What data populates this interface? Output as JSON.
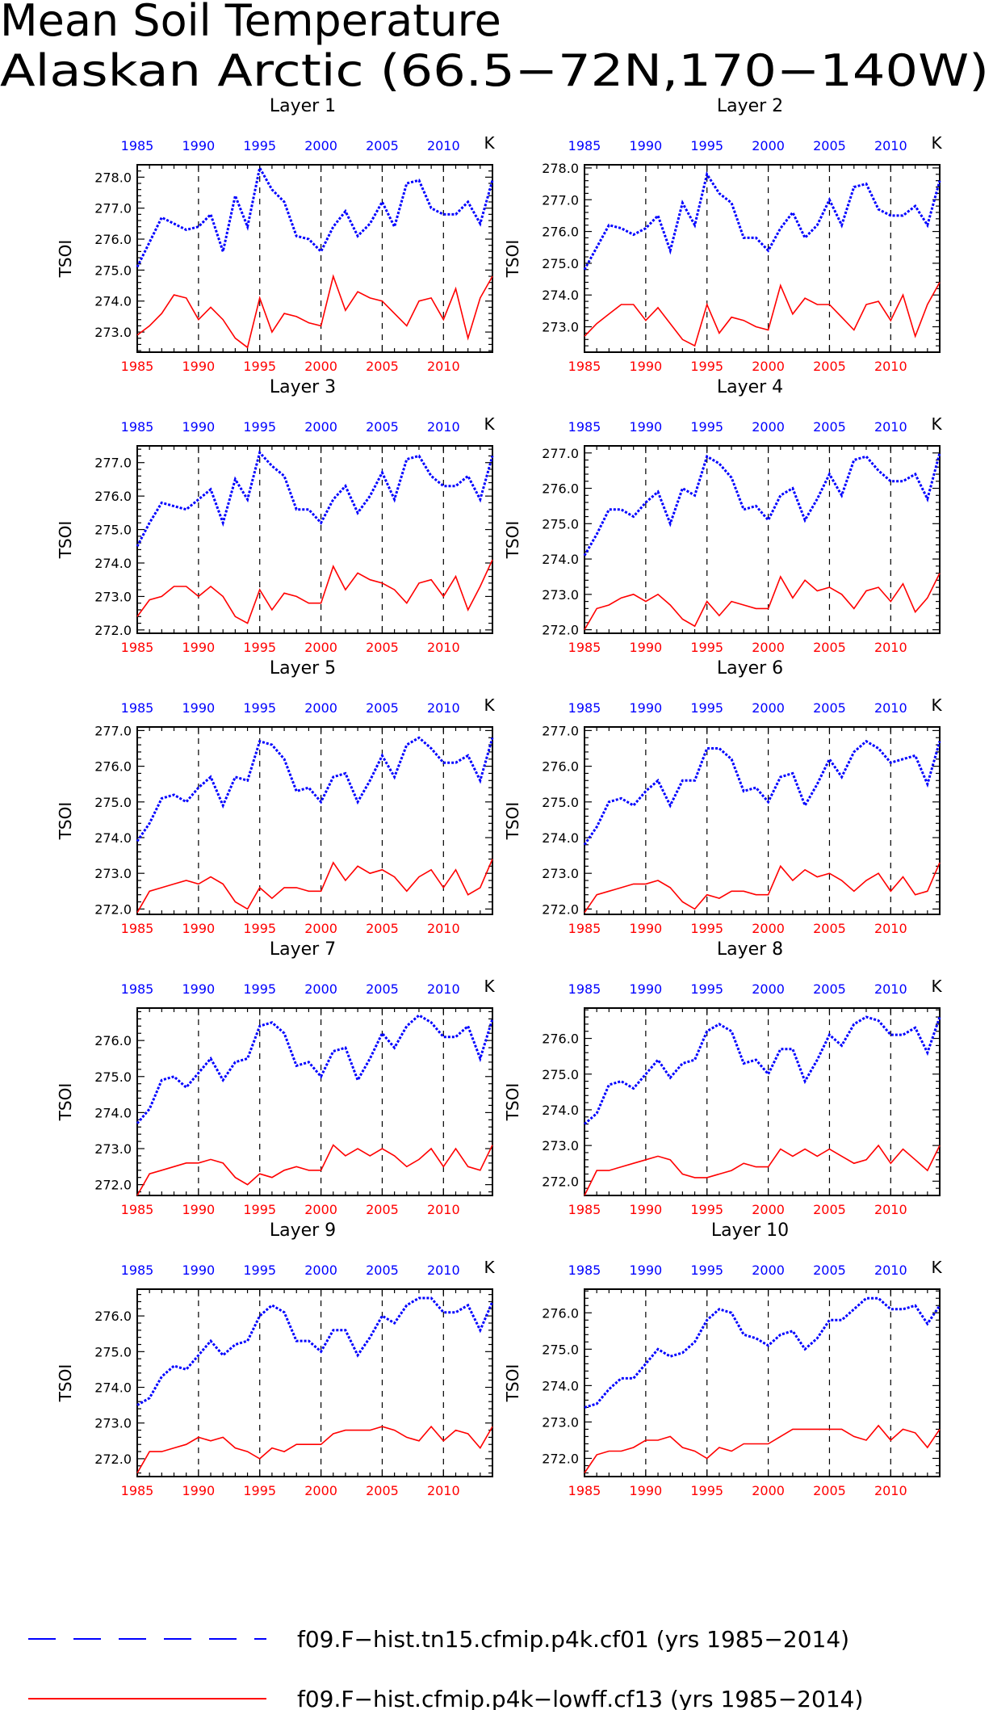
{
  "figure": {
    "title_line1": "Mean Soil Temperature",
    "title_line2": "Alaskan Arctic (66.5−72N,170−140W)"
  },
  "legend": {
    "entries": [
      {
        "label": "f09.F−hist.tn15.cfmip.p4k.cf01 (yrs 1985−2014)",
        "color": "#0000ff",
        "style": "dashed"
      },
      {
        "label": "f09.F−hist.cfmip.p4k−lowff.cf13 (yrs 1985−2014)",
        "color": "#ff0000",
        "style": "solid"
      }
    ]
  },
  "chart_data": [
    {
      "type": "line",
      "title": "Layer 1",
      "ylabel": "TSOI",
      "unit": "K",
      "x_range": [
        1985,
        2014
      ],
      "ylim": [
        272.35,
        278.4
      ],
      "yticks": [
        273.0,
        274.0,
        275.0,
        276.0,
        277.0,
        278.0
      ],
      "xticks": [
        1985,
        1990,
        1995,
        2000,
        2005,
        2010
      ],
      "series": [
        {
          "name": "f09.F−hist.tn15.cfmip.p4k.cf01 (yrs 1985−2014)",
          "color": "#0000ff",
          "values": [
            275.1,
            275.9,
            276.7,
            276.5,
            276.3,
            276.4,
            276.8,
            275.6,
            277.4,
            276.4,
            278.3,
            277.6,
            277.2,
            276.1,
            276.0,
            275.6,
            276.4,
            276.9,
            276.1,
            276.5,
            277.2,
            276.4,
            277.8,
            277.9,
            277.0,
            276.8,
            276.8,
            277.2,
            276.5,
            277.9
          ]
        },
        {
          "name": "f09.F−hist.cfmip.p4k−lowff.cf13 (yrs 1985−2014)",
          "color": "#ff0000",
          "values": [
            272.9,
            273.2,
            273.6,
            274.2,
            274.1,
            273.4,
            273.8,
            273.4,
            272.8,
            272.5,
            274.1,
            273.0,
            273.6,
            273.5,
            273.3,
            273.2,
            274.8,
            273.7,
            274.3,
            274.1,
            274.0,
            273.6,
            273.2,
            274.0,
            274.1,
            273.4,
            274.4,
            272.8,
            274.1,
            274.8
          ]
        }
      ]
    },
    {
      "type": "line",
      "title": "Layer 2",
      "ylabel": "TSOI",
      "unit": "K",
      "x_range": [
        1985,
        2014
      ],
      "ylim": [
        272.2,
        278.1
      ],
      "yticks": [
        273.0,
        274.0,
        275.0,
        276.0,
        277.0,
        278.0
      ],
      "xticks": [
        1985,
        1990,
        1995,
        2000,
        2005,
        2010
      ],
      "series": [
        {
          "name": "f09.F−hist.tn15.cfmip.p4k.cf01 (yrs 1985−2014)",
          "color": "#0000ff",
          "values": [
            274.8,
            275.5,
            276.2,
            276.1,
            275.9,
            276.1,
            276.5,
            275.4,
            276.9,
            276.2,
            277.8,
            277.2,
            276.9,
            275.8,
            275.8,
            275.4,
            276.1,
            276.6,
            275.8,
            276.2,
            277.0,
            276.2,
            277.4,
            277.5,
            276.7,
            276.5,
            276.5,
            276.8,
            276.2,
            277.6
          ]
        },
        {
          "name": "f09.F−hist.cfmip.p4k−lowff.cf13 (yrs 1985−2014)",
          "color": "#ff0000",
          "values": [
            272.7,
            273.1,
            273.4,
            273.7,
            273.7,
            273.2,
            273.6,
            273.1,
            272.6,
            272.4,
            273.7,
            272.8,
            273.3,
            273.2,
            273.0,
            272.9,
            274.3,
            273.4,
            273.9,
            273.7,
            273.7,
            273.3,
            272.9,
            273.7,
            273.8,
            273.2,
            274.0,
            272.7,
            273.7,
            274.4
          ]
        }
      ]
    },
    {
      "type": "line",
      "title": "Layer 3",
      "ylabel": "TSOI",
      "unit": "K",
      "x_range": [
        1985,
        2014
      ],
      "ylim": [
        271.9,
        277.5
      ],
      "yticks": [
        272.0,
        273.0,
        274.0,
        275.0,
        276.0,
        277.0
      ],
      "xticks": [
        1985,
        1990,
        1995,
        2000,
        2005,
        2010
      ],
      "series": [
        {
          "name": "f09.F−hist.tn15.cfmip.p4k.cf01 (yrs 1985−2014)",
          "color": "#0000ff",
          "values": [
            274.5,
            275.2,
            275.8,
            275.7,
            275.6,
            275.9,
            276.2,
            275.2,
            276.5,
            275.9,
            277.3,
            276.9,
            276.6,
            275.6,
            275.6,
            275.2,
            275.9,
            276.3,
            275.5,
            276.0,
            276.7,
            275.9,
            277.1,
            277.2,
            276.6,
            276.3,
            276.3,
            276.6,
            275.9,
            277.2
          ]
        },
        {
          "name": "f09.F−hist.cfmip.p4k−lowff.cf13 (yrs 1985−2014)",
          "color": "#ff0000",
          "values": [
            272.4,
            272.9,
            273.0,
            273.3,
            273.3,
            273.0,
            273.3,
            273.0,
            272.4,
            272.2,
            273.2,
            272.6,
            273.1,
            273.0,
            272.8,
            272.8,
            273.9,
            273.2,
            273.7,
            273.5,
            273.4,
            273.2,
            272.8,
            273.4,
            273.5,
            273.0,
            273.6,
            272.6,
            273.3,
            274.1
          ]
        }
      ]
    },
    {
      "type": "line",
      "title": "Layer 4",
      "ylabel": "TSOI",
      "unit": "K",
      "x_range": [
        1985,
        2014
      ],
      "ylim": [
        271.9,
        277.2
      ],
      "yticks": [
        272.0,
        273.0,
        274.0,
        275.0,
        276.0,
        277.0
      ],
      "xticks": [
        1985,
        1990,
        1995,
        2000,
        2005,
        2010
      ],
      "series": [
        {
          "name": "f09.F−hist.tn15.cfmip.p4k.cf01 (yrs 1985−2014)",
          "color": "#0000ff",
          "values": [
            274.1,
            274.7,
            275.4,
            275.4,
            275.2,
            275.6,
            275.9,
            275.0,
            276.0,
            275.8,
            276.9,
            276.7,
            276.3,
            275.4,
            275.5,
            275.1,
            275.8,
            276.0,
            275.1,
            275.7,
            276.4,
            275.8,
            276.8,
            276.9,
            276.5,
            276.2,
            276.2,
            276.4,
            275.7,
            277.0
          ]
        },
        {
          "name": "f09.F−hist.cfmip.p4k−lowff.cf13 (yrs 1985−2014)",
          "color": "#ff0000",
          "values": [
            272.0,
            272.6,
            272.7,
            272.9,
            273.0,
            272.8,
            273.0,
            272.7,
            272.3,
            272.1,
            272.8,
            272.4,
            272.8,
            272.7,
            272.6,
            272.6,
            273.5,
            272.9,
            273.4,
            273.1,
            273.2,
            273.0,
            272.6,
            273.1,
            273.2,
            272.8,
            273.3,
            272.5,
            272.9,
            273.6
          ]
        }
      ]
    },
    {
      "type": "line",
      "title": "Layer 5",
      "ylabel": "TSOI",
      "unit": "K",
      "x_range": [
        1985,
        2014
      ],
      "ylim": [
        271.85,
        277.1
      ],
      "yticks": [
        272.0,
        273.0,
        274.0,
        275.0,
        276.0,
        277.0
      ],
      "xticks": [
        1985,
        1990,
        1995,
        2000,
        2005,
        2010
      ],
      "series": [
        {
          "name": "f09.F−hist.tn15.cfmip.p4k.cf01 (yrs 1985−2014)",
          "color": "#0000ff",
          "values": [
            273.9,
            274.4,
            275.1,
            275.2,
            275.0,
            275.4,
            275.7,
            274.9,
            275.7,
            275.6,
            276.7,
            276.6,
            276.2,
            275.3,
            275.4,
            275.0,
            275.7,
            275.8,
            275.0,
            275.6,
            276.3,
            275.7,
            276.6,
            276.8,
            276.5,
            276.1,
            276.1,
            276.3,
            275.6,
            276.8
          ]
        },
        {
          "name": "f09.F−hist.cfmip.p4k−lowff.cf13 (yrs 1985−2014)",
          "color": "#ff0000",
          "values": [
            271.9,
            272.5,
            272.6,
            272.7,
            272.8,
            272.7,
            272.9,
            272.7,
            272.2,
            272.0,
            272.6,
            272.3,
            272.6,
            272.6,
            272.5,
            272.5,
            273.3,
            272.8,
            273.2,
            273.0,
            273.1,
            272.9,
            272.5,
            272.9,
            273.1,
            272.6,
            273.1,
            272.4,
            272.6,
            273.4
          ]
        }
      ]
    },
    {
      "type": "line",
      "title": "Layer 6",
      "ylabel": "TSOI",
      "unit": "K",
      "x_range": [
        1985,
        2014
      ],
      "ylim": [
        271.85,
        277.1
      ],
      "yticks": [
        272.0,
        273.0,
        274.0,
        275.0,
        276.0,
        277.0
      ],
      "xticks": [
        1985,
        1990,
        1995,
        2000,
        2005,
        2010
      ],
      "series": [
        {
          "name": "f09.F−hist.tn15.cfmip.p4k.cf01 (yrs 1985−2014)",
          "color": "#0000ff",
          "values": [
            273.8,
            274.3,
            275.0,
            275.1,
            274.9,
            275.3,
            275.6,
            274.9,
            275.6,
            275.6,
            276.5,
            276.5,
            276.2,
            275.3,
            275.4,
            275.0,
            275.7,
            275.8,
            274.9,
            275.5,
            276.2,
            275.7,
            276.4,
            276.7,
            276.5,
            276.1,
            276.2,
            276.3,
            275.5,
            276.7
          ]
        },
        {
          "name": "f09.F−hist.cfmip.p4k−lowff.cf13 (yrs 1985−2014)",
          "color": "#ff0000",
          "values": [
            271.9,
            272.4,
            272.5,
            272.6,
            272.7,
            272.7,
            272.8,
            272.6,
            272.2,
            272.0,
            272.4,
            272.3,
            272.5,
            272.5,
            272.4,
            272.4,
            273.2,
            272.8,
            273.1,
            272.9,
            273.0,
            272.8,
            272.5,
            272.8,
            273.0,
            272.5,
            272.9,
            272.4,
            272.5,
            273.3
          ]
        }
      ]
    },
    {
      "type": "line",
      "title": "Layer 7",
      "ylabel": "TSOI",
      "unit": "K",
      "x_range": [
        1985,
        2014
      ],
      "ylim": [
        271.7,
        276.9
      ],
      "yticks": [
        272.0,
        273.0,
        274.0,
        275.0,
        276.0
      ],
      "xticks": [
        1985,
        1990,
        1995,
        2000,
        2005,
        2010
      ],
      "series": [
        {
          "name": "f09.F−hist.tn15.cfmip.p4k.cf01 (yrs 1985−2014)",
          "color": "#0000ff",
          "values": [
            273.7,
            274.1,
            274.9,
            275.0,
            274.7,
            275.1,
            275.5,
            274.9,
            275.4,
            275.5,
            276.4,
            276.5,
            276.2,
            275.3,
            275.4,
            275.0,
            275.7,
            275.8,
            274.9,
            275.5,
            276.2,
            275.8,
            276.4,
            276.7,
            276.5,
            276.1,
            276.1,
            276.4,
            275.5,
            276.6
          ]
        },
        {
          "name": "f09.F−hist.cfmip.p4k−lowff.cf13 (yrs 1985−2014)",
          "color": "#ff0000",
          "values": [
            271.7,
            272.3,
            272.4,
            272.5,
            272.6,
            272.6,
            272.7,
            272.6,
            272.2,
            272.0,
            272.3,
            272.2,
            272.4,
            272.5,
            272.4,
            272.4,
            273.1,
            272.8,
            273.0,
            272.8,
            273.0,
            272.8,
            272.5,
            272.7,
            273.0,
            272.5,
            273.0,
            272.5,
            272.4,
            273.1
          ]
        }
      ]
    },
    {
      "type": "line",
      "title": "Layer 8",
      "ylabel": "TSOI",
      "unit": "K",
      "x_range": [
        1985,
        2014
      ],
      "ylim": [
        271.6,
        276.85
      ],
      "yticks": [
        272.0,
        273.0,
        274.0,
        275.0,
        276.0
      ],
      "xticks": [
        1985,
        1990,
        1995,
        2000,
        2005,
        2010
      ],
      "series": [
        {
          "name": "f09.F−hist.tn15.cfmip.p4k.cf01 (yrs 1985−2014)",
          "color": "#0000ff",
          "values": [
            273.6,
            273.9,
            274.7,
            274.8,
            274.6,
            275.0,
            275.4,
            274.9,
            275.3,
            275.4,
            276.2,
            276.4,
            276.2,
            275.3,
            275.4,
            275.0,
            275.7,
            275.7,
            274.8,
            275.4,
            276.1,
            275.8,
            276.4,
            276.6,
            276.5,
            276.1,
            276.1,
            276.3,
            275.6,
            276.6
          ]
        },
        {
          "name": "f09.F−hist.cfmip.p4k−lowff.cf13 (yrs 1985−2014)",
          "color": "#ff0000",
          "values": [
            271.6,
            272.3,
            272.3,
            272.4,
            272.5,
            272.6,
            272.7,
            272.6,
            272.2,
            272.1,
            272.1,
            272.2,
            272.3,
            272.5,
            272.4,
            272.4,
            272.9,
            272.7,
            272.9,
            272.7,
            272.9,
            272.7,
            272.5,
            272.6,
            273.0,
            272.5,
            272.9,
            272.6,
            272.3,
            273.0
          ]
        }
      ]
    },
    {
      "type": "line",
      "title": "Layer 9",
      "ylabel": "TSOI",
      "unit": "K",
      "x_range": [
        1985,
        2014
      ],
      "ylim": [
        271.5,
        276.75
      ],
      "yticks": [
        272.0,
        273.0,
        274.0,
        275.0,
        276.0
      ],
      "xticks": [
        1985,
        1990,
        1995,
        2000,
        2005,
        2010
      ],
      "series": [
        {
          "name": "f09.F−hist.tn15.cfmip.p4k.cf01 (yrs 1985−2014)",
          "color": "#0000ff",
          "values": [
            273.5,
            273.7,
            274.3,
            274.6,
            274.5,
            274.9,
            275.3,
            274.9,
            275.2,
            275.3,
            276.0,
            276.3,
            276.1,
            275.3,
            275.3,
            275.0,
            275.6,
            275.6,
            274.9,
            275.4,
            276.0,
            275.8,
            276.3,
            276.5,
            276.5,
            276.1,
            276.1,
            276.3,
            275.6,
            276.4
          ]
        },
        {
          "name": "f09.F−hist.cfmip.p4k−lowff.cf13 (yrs 1985−2014)",
          "color": "#ff0000",
          "values": [
            271.6,
            272.2,
            272.2,
            272.3,
            272.4,
            272.6,
            272.5,
            272.6,
            272.3,
            272.2,
            272.0,
            272.3,
            272.2,
            272.4,
            272.4,
            272.4,
            272.7,
            272.8,
            272.8,
            272.8,
            272.9,
            272.8,
            272.6,
            272.5,
            272.9,
            272.5,
            272.8,
            272.7,
            272.3,
            272.9
          ]
        }
      ]
    },
    {
      "type": "line",
      "title": "Layer 10",
      "ylabel": "TSOI",
      "unit": "K",
      "x_range": [
        1985,
        2014
      ],
      "ylim": [
        271.5,
        276.65
      ],
      "yticks": [
        272.0,
        273.0,
        274.0,
        275.0,
        276.0
      ],
      "xticks": [
        1985,
        1990,
        1995,
        2000,
        2005,
        2010
      ],
      "series": [
        {
          "name": "f09.F−hist.tn15.cfmip.p4k.cf01 (yrs 1985−2014)",
          "color": "#0000ff",
          "values": [
            273.4,
            273.5,
            273.9,
            274.2,
            274.2,
            274.6,
            275.0,
            274.8,
            274.9,
            275.2,
            275.8,
            276.1,
            276.0,
            275.4,
            275.3,
            275.1,
            275.4,
            275.5,
            275.0,
            275.3,
            275.8,
            275.8,
            276.1,
            276.4,
            276.4,
            276.1,
            276.1,
            276.2,
            275.7,
            276.2
          ]
        },
        {
          "name": "f09.F−hist.cfmip.p4k−lowff.cf13 (yrs 1985−2014)",
          "color": "#ff0000",
          "values": [
            271.6,
            272.1,
            272.2,
            272.2,
            272.3,
            272.5,
            272.5,
            272.6,
            272.3,
            272.2,
            272.0,
            272.3,
            272.2,
            272.4,
            272.4,
            272.4,
            272.6,
            272.8,
            272.8,
            272.8,
            272.8,
            272.8,
            272.6,
            272.5,
            272.9,
            272.5,
            272.8,
            272.7,
            272.3,
            272.8
          ]
        }
      ]
    }
  ]
}
